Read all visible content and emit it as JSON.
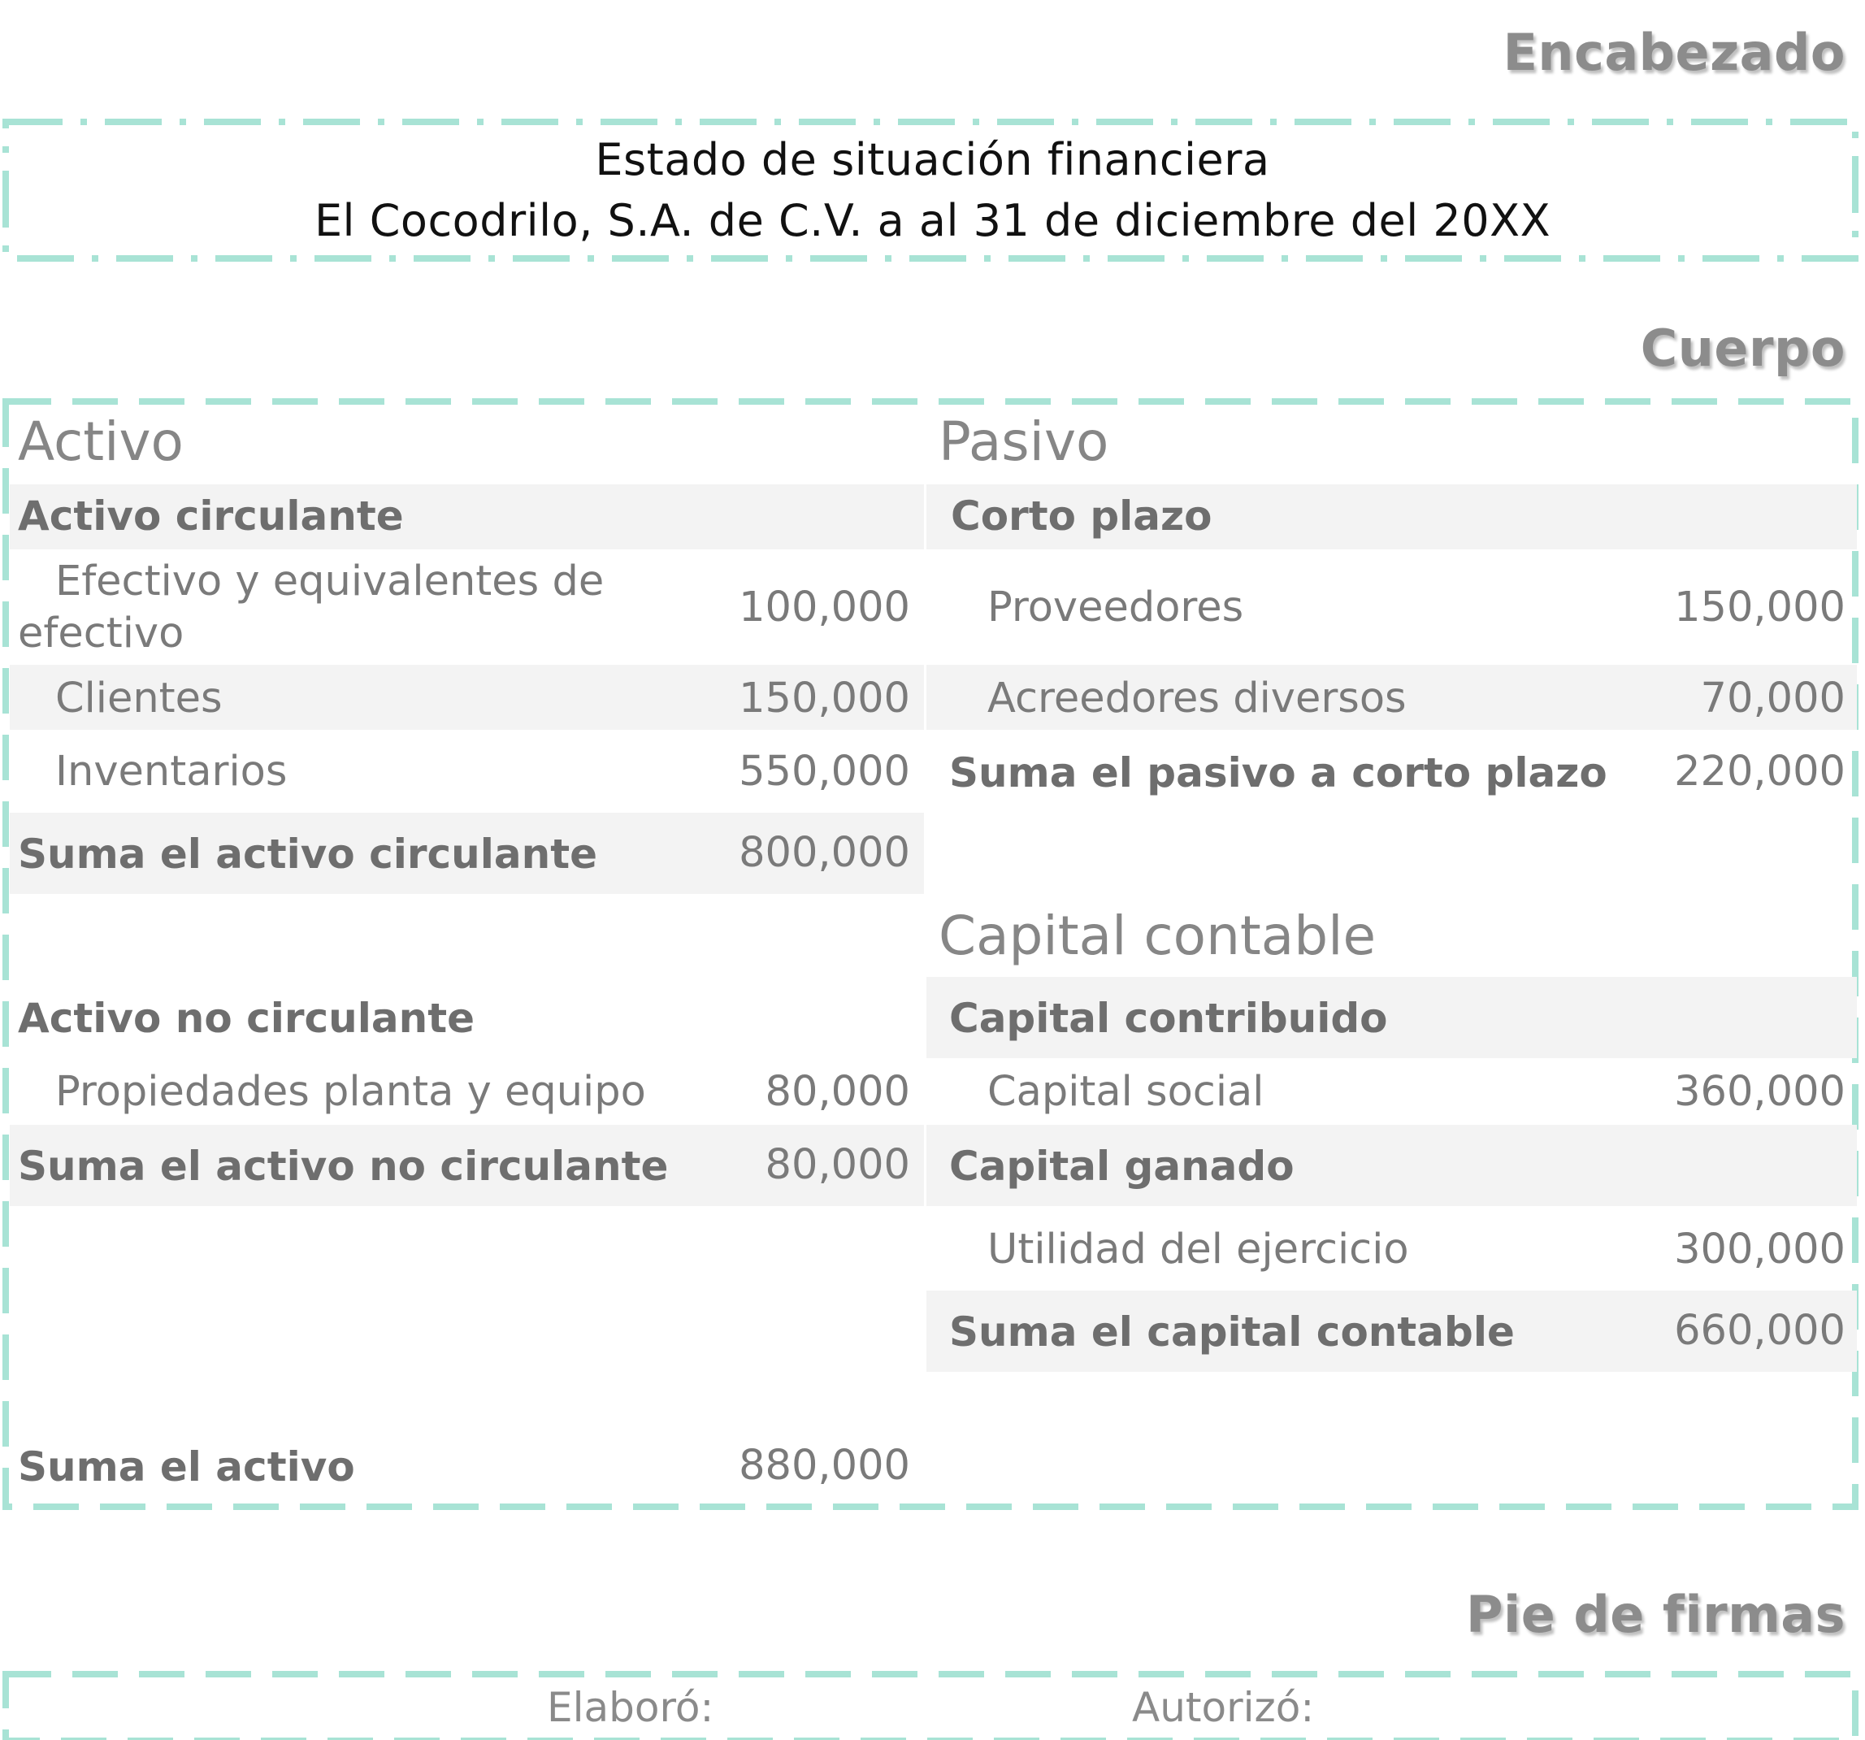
{
  "labels": {
    "header": "Encabezado",
    "body": "Cuerpo",
    "footer": "Pie de firmas"
  },
  "header": {
    "line1": "Estado de situación financiera",
    "line2": "El Cocodrilo, S.A. de C.V. a al 31 de diciembre del 20XX"
  },
  "activo": {
    "title": "Activo",
    "circulante": {
      "title": "Activo circulante",
      "items": [
        {
          "label_line1": "Efectivo y equivalentes de",
          "label_line2": "efectivo",
          "value": "100,000"
        },
        {
          "label": "Clientes",
          "value": "150,000"
        },
        {
          "label": "Inventarios",
          "value": "550,000"
        }
      ],
      "total_label": "Suma el activo circulante",
      "total_value": "800,000"
    },
    "no_circulante": {
      "title": "Activo no circulante",
      "items": [
        {
          "label": "Propiedades planta y equipo",
          "value": "80,000"
        }
      ],
      "total_label": "Suma el activo no circulante",
      "total_value": "80,000"
    },
    "total_label": "Suma el activo",
    "total_value": "880,000"
  },
  "pasivo": {
    "title": "Pasivo",
    "corto_plazo": {
      "title": "Corto plazo",
      "items": [
        {
          "label": "Proveedores",
          "value": "150,000"
        },
        {
          "label": "Acreedores diversos",
          "value": "70,000"
        }
      ],
      "total_label": "Suma el pasivo a corto plazo",
      "total_value": "220,000"
    }
  },
  "capital": {
    "title": "Capital contable",
    "contribuido": {
      "title": "Capital contribuido",
      "items": [
        {
          "label": "Capital social",
          "value": "360,000"
        }
      ]
    },
    "ganado": {
      "title": "Capital ganado",
      "items": [
        {
          "label": "Utilidad del ejercicio",
          "value": "300,000"
        }
      ]
    },
    "total_label": "Suma el capital contable",
    "total_value": "660,000"
  },
  "footer": {
    "elaboro": "Elaboró:",
    "autorizo": "Autorizó:"
  },
  "colors": {
    "dash_border": "#a8e3d5",
    "band": "#f3f3f3",
    "label_text": "#8c8c8c"
  }
}
